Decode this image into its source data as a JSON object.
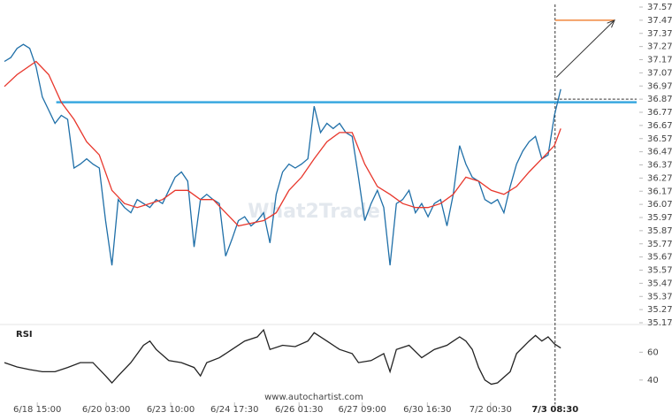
{
  "chart_data": [
    {
      "type": "line",
      "watermark": "What2Trade",
      "source": "www.autochartist.com",
      "xlim": [
        0,
        100
      ],
      "xticks": [
        {
          "value": 5.2,
          "label": "6/18 15:00"
        },
        {
          "value": 16.1,
          "label": "6/20 03:00"
        },
        {
          "value": 26.3,
          "label": "6/23 10:00"
        },
        {
          "value": 36.4,
          "label": "6/24 17:30"
        },
        {
          "value": 46.6,
          "label": "6/26 01:30"
        },
        {
          "value": 56.6,
          "label": "6/27 09:00"
        },
        {
          "value": 66.9,
          "label": "6/30 16:30"
        },
        {
          "value": 76.9,
          "label": "7/2 00:30"
        },
        {
          "value": 87.1,
          "label": "7/3 08:30"
        }
      ],
      "ylim": [
        35.1737,
        37.5737
      ],
      "yticks": [
        37.5737,
        37.4737,
        37.3737,
        37.2737,
        37.1737,
        37.0737,
        36.9737,
        36.8737,
        36.7737,
        36.6737,
        36.5737,
        36.4737,
        36.3737,
        36.2737,
        36.1737,
        36.0737,
        35.9737,
        35.8737,
        35.7737,
        35.6737,
        35.5737,
        35.4737,
        35.3737,
        35.2737,
        35.1737
      ],
      "series": [
        {
          "color": "#1f6fa8",
          "x": [
            0,
            1,
            2,
            3,
            4,
            5,
            6,
            7,
            8,
            9,
            10,
            11,
            12,
            13,
            14,
            15,
            16,
            17,
            18,
            19,
            20,
            21,
            22,
            23,
            24,
            25,
            26,
            27,
            28,
            29,
            30,
            31,
            32,
            33,
            34,
            35,
            36,
            37,
            38,
            39,
            40,
            41,
            42,
            43,
            44,
            45,
            46,
            47,
            48,
            49,
            50,
            51,
            52,
            53,
            54,
            55,
            56,
            57,
            58,
            59,
            60,
            61,
            62,
            63,
            64,
            65,
            66,
            67,
            68,
            69,
            70,
            71,
            72,
            73,
            74,
            75,
            76,
            77,
            78,
            79,
            80,
            81,
            82,
            83,
            84,
            85,
            86,
            87,
            88
          ],
          "values": [
            37.16,
            37.19,
            37.26,
            37.29,
            37.26,
            37.12,
            36.89,
            36.79,
            36.69,
            36.75,
            36.72,
            36.35,
            36.38,
            36.42,
            36.38,
            36.35,
            35.95,
            35.61,
            36.11,
            36.05,
            36.01,
            36.11,
            36.08,
            36.05,
            36.11,
            36.08,
            36.18,
            36.28,
            36.32,
            36.25,
            35.75,
            36.11,
            36.15,
            36.11,
            36.08,
            35.68,
            35.81,
            35.95,
            35.98,
            35.91,
            35.95,
            36.01,
            35.78,
            36.15,
            36.32,
            36.38,
            36.35,
            36.38,
            36.42,
            36.82,
            36.62,
            36.69,
            36.65,
            36.69,
            36.62,
            36.59,
            36.28,
            35.95,
            36.08,
            36.18,
            36.05,
            35.61,
            36.08,
            36.11,
            36.18,
            36.01,
            36.08,
            35.98,
            36.08,
            36.11,
            35.91,
            36.15,
            36.52,
            36.38,
            36.28,
            36.25,
            36.11,
            36.08,
            36.11,
            36.01,
            36.21,
            36.38,
            36.48,
            36.55,
            36.59,
            36.42,
            36.45,
            36.75,
            36.95
          ]
        },
        {
          "color": "#e8372c",
          "x": [
            0,
            2,
            5,
            7,
            9,
            11,
            13,
            15,
            17,
            19,
            21,
            23,
            25,
            27,
            29,
            31,
            33,
            35,
            37,
            39,
            41,
            43,
            45,
            47,
            49,
            51,
            53,
            55,
            57,
            59,
            61,
            63,
            65,
            67,
            69,
            71,
            73,
            75,
            77,
            79,
            81,
            83,
            85,
            87,
            88
          ],
          "values": [
            36.97,
            37.06,
            37.16,
            37.06,
            36.85,
            36.72,
            36.55,
            36.45,
            36.18,
            36.08,
            36.05,
            36.08,
            36.11,
            36.18,
            36.18,
            36.11,
            36.11,
            36.01,
            35.91,
            35.93,
            35.95,
            36.01,
            36.18,
            36.28,
            36.42,
            36.55,
            36.62,
            36.62,
            36.38,
            36.21,
            36.15,
            36.08,
            36.05,
            36.05,
            36.08,
            36.15,
            36.28,
            36.25,
            36.18,
            36.15,
            36.21,
            36.32,
            36.42,
            36.52,
            36.65
          ]
        }
      ],
      "level": {
        "color": "#3aa8e0",
        "x": [
          8.2,
          100
        ],
        "value": 36.85
      },
      "current": {
        "x": [
          87.1,
          100
        ],
        "value": 36.8737
      },
      "target": {
        "color": "#f0883e",
        "x": [
          87.1,
          96.5
        ],
        "value": 37.4737
      },
      "arrow": {
        "x": [
          87.3,
          96.5
        ],
        "values": [
          37.04,
          37.4737
        ]
      },
      "cursor_x": 87.1
    },
    {
      "type": "line",
      "title": "RSI",
      "xlim": [
        0,
        100
      ],
      "ylim": [
        24,
        78
      ],
      "yticks": [
        40,
        60
      ],
      "series": [
        {
          "color": "#222222",
          "x": [
            0,
            2,
            4,
            6,
            8,
            10,
            12,
            14,
            16,
            17,
            18,
            20,
            22,
            23,
            24,
            26,
            28,
            30,
            31,
            32,
            34,
            36,
            38,
            40,
            41,
            42,
            44,
            46,
            48,
            49,
            51,
            53,
            55,
            56,
            58,
            60,
            61,
            62,
            64,
            66,
            68,
            70,
            72,
            73,
            74,
            75,
            76,
            77,
            78,
            80,
            81,
            83,
            84,
            85,
            86,
            87,
            88
          ],
          "values": [
            52.5,
            49.4,
            47.5,
            46,
            46,
            49,
            52.5,
            52.5,
            43,
            38,
            43,
            52.5,
            65,
            68,
            62,
            54,
            52.5,
            49,
            43,
            52.5,
            56,
            62,
            68,
            71,
            76,
            62,
            65,
            64,
            68,
            74,
            68,
            62,
            59,
            52.5,
            54,
            59,
            46,
            62,
            65,
            56,
            62,
            65,
            71,
            68,
            62,
            49,
            40,
            37,
            38,
            46,
            59,
            68,
            72,
            68,
            71,
            66,
            63
          ]
        }
      ]
    }
  ]
}
